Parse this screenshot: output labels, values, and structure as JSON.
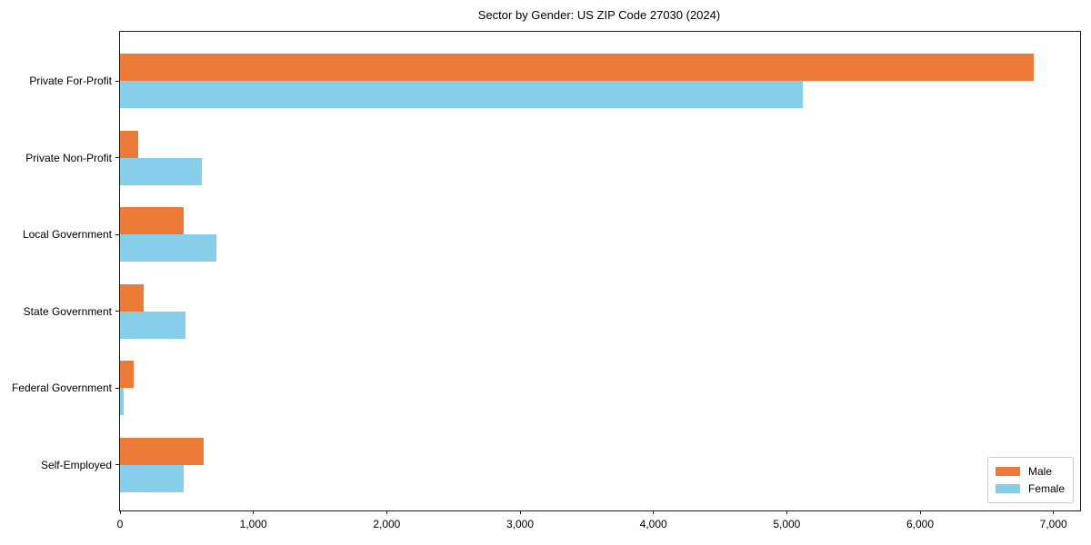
{
  "chart_data": {
    "type": "bar",
    "orientation": "horizontal",
    "title": "Sector by Gender: US ZIP Code 27030 (2024)",
    "xlabel": "",
    "ylabel": "",
    "categories": [
      "Private For-Profit",
      "Private Non-Profit",
      "Local Government",
      "State Government",
      "Federal Government",
      "Self-Employed"
    ],
    "series": [
      {
        "name": "Male",
        "color": "#ec7a39",
        "values": [
          6850,
          135,
          480,
          180,
          100,
          630
        ]
      },
      {
        "name": "Female",
        "color": "#87ceeb",
        "values": [
          5120,
          610,
          725,
          490,
          25,
          480
        ]
      }
    ],
    "xlim": [
      0,
      7200
    ],
    "x_ticks": [
      0,
      1000,
      2000,
      3000,
      4000,
      5000,
      6000,
      7000
    ],
    "x_tick_labels": [
      "0",
      "1,000",
      "2,000",
      "3,000",
      "4,000",
      "5,000",
      "6,000",
      "7,000"
    ],
    "grid": false,
    "legend_position": "lower right"
  }
}
